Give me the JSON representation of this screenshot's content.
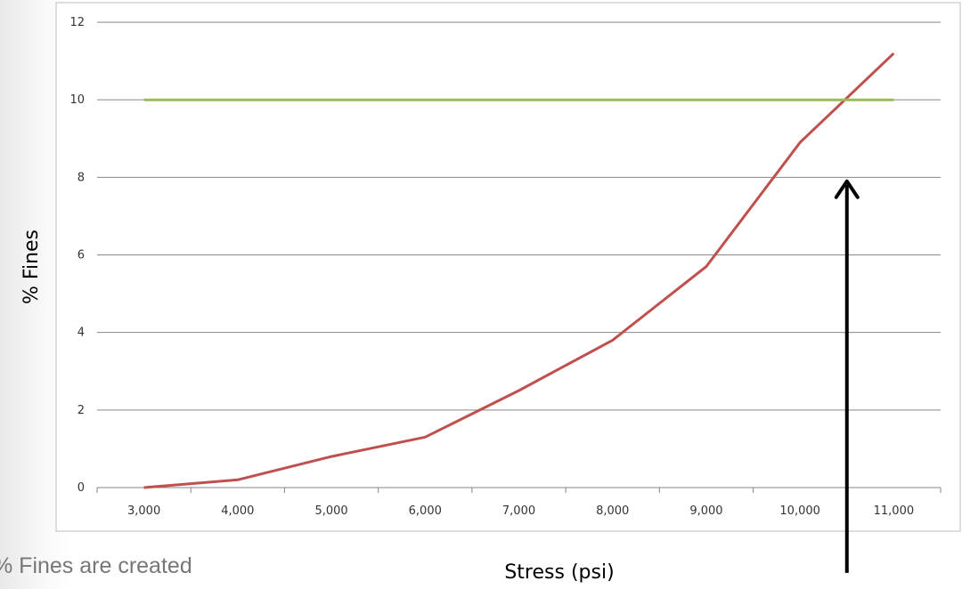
{
  "chart_data": {
    "type": "line",
    "xlabel": "Stress (psi)",
    "ylabel": "% Fines",
    "x": [
      3000,
      4000,
      5000,
      6000,
      7000,
      8000,
      9000,
      10000,
      11000
    ],
    "xtick_labels": [
      "3,000",
      "4,000",
      "5,000",
      "6,000",
      "7,000",
      "8,000",
      "9,000",
      "10,000",
      "11,000"
    ],
    "yticks": [
      0,
      2,
      4,
      6,
      8,
      10,
      12
    ],
    "ylim": [
      0,
      12
    ],
    "grid": "horizontal",
    "series": [
      {
        "values": [
          0,
          0.2,
          0.8,
          1.3,
          2.5,
          3.8,
          5.7,
          8.9,
          11.2
        ],
        "color": "#c0504d"
      },
      {
        "values": [
          10,
          10,
          10,
          10,
          10,
          10,
          10,
          10,
          10
        ],
        "color": "#9bbb59"
      }
    ],
    "annotations": [
      {
        "type": "arrow",
        "x": 10500,
        "y_from": -2.2,
        "y_to": 7.9,
        "color": "#000000"
      }
    ]
  },
  "caption": "% Fines are created"
}
